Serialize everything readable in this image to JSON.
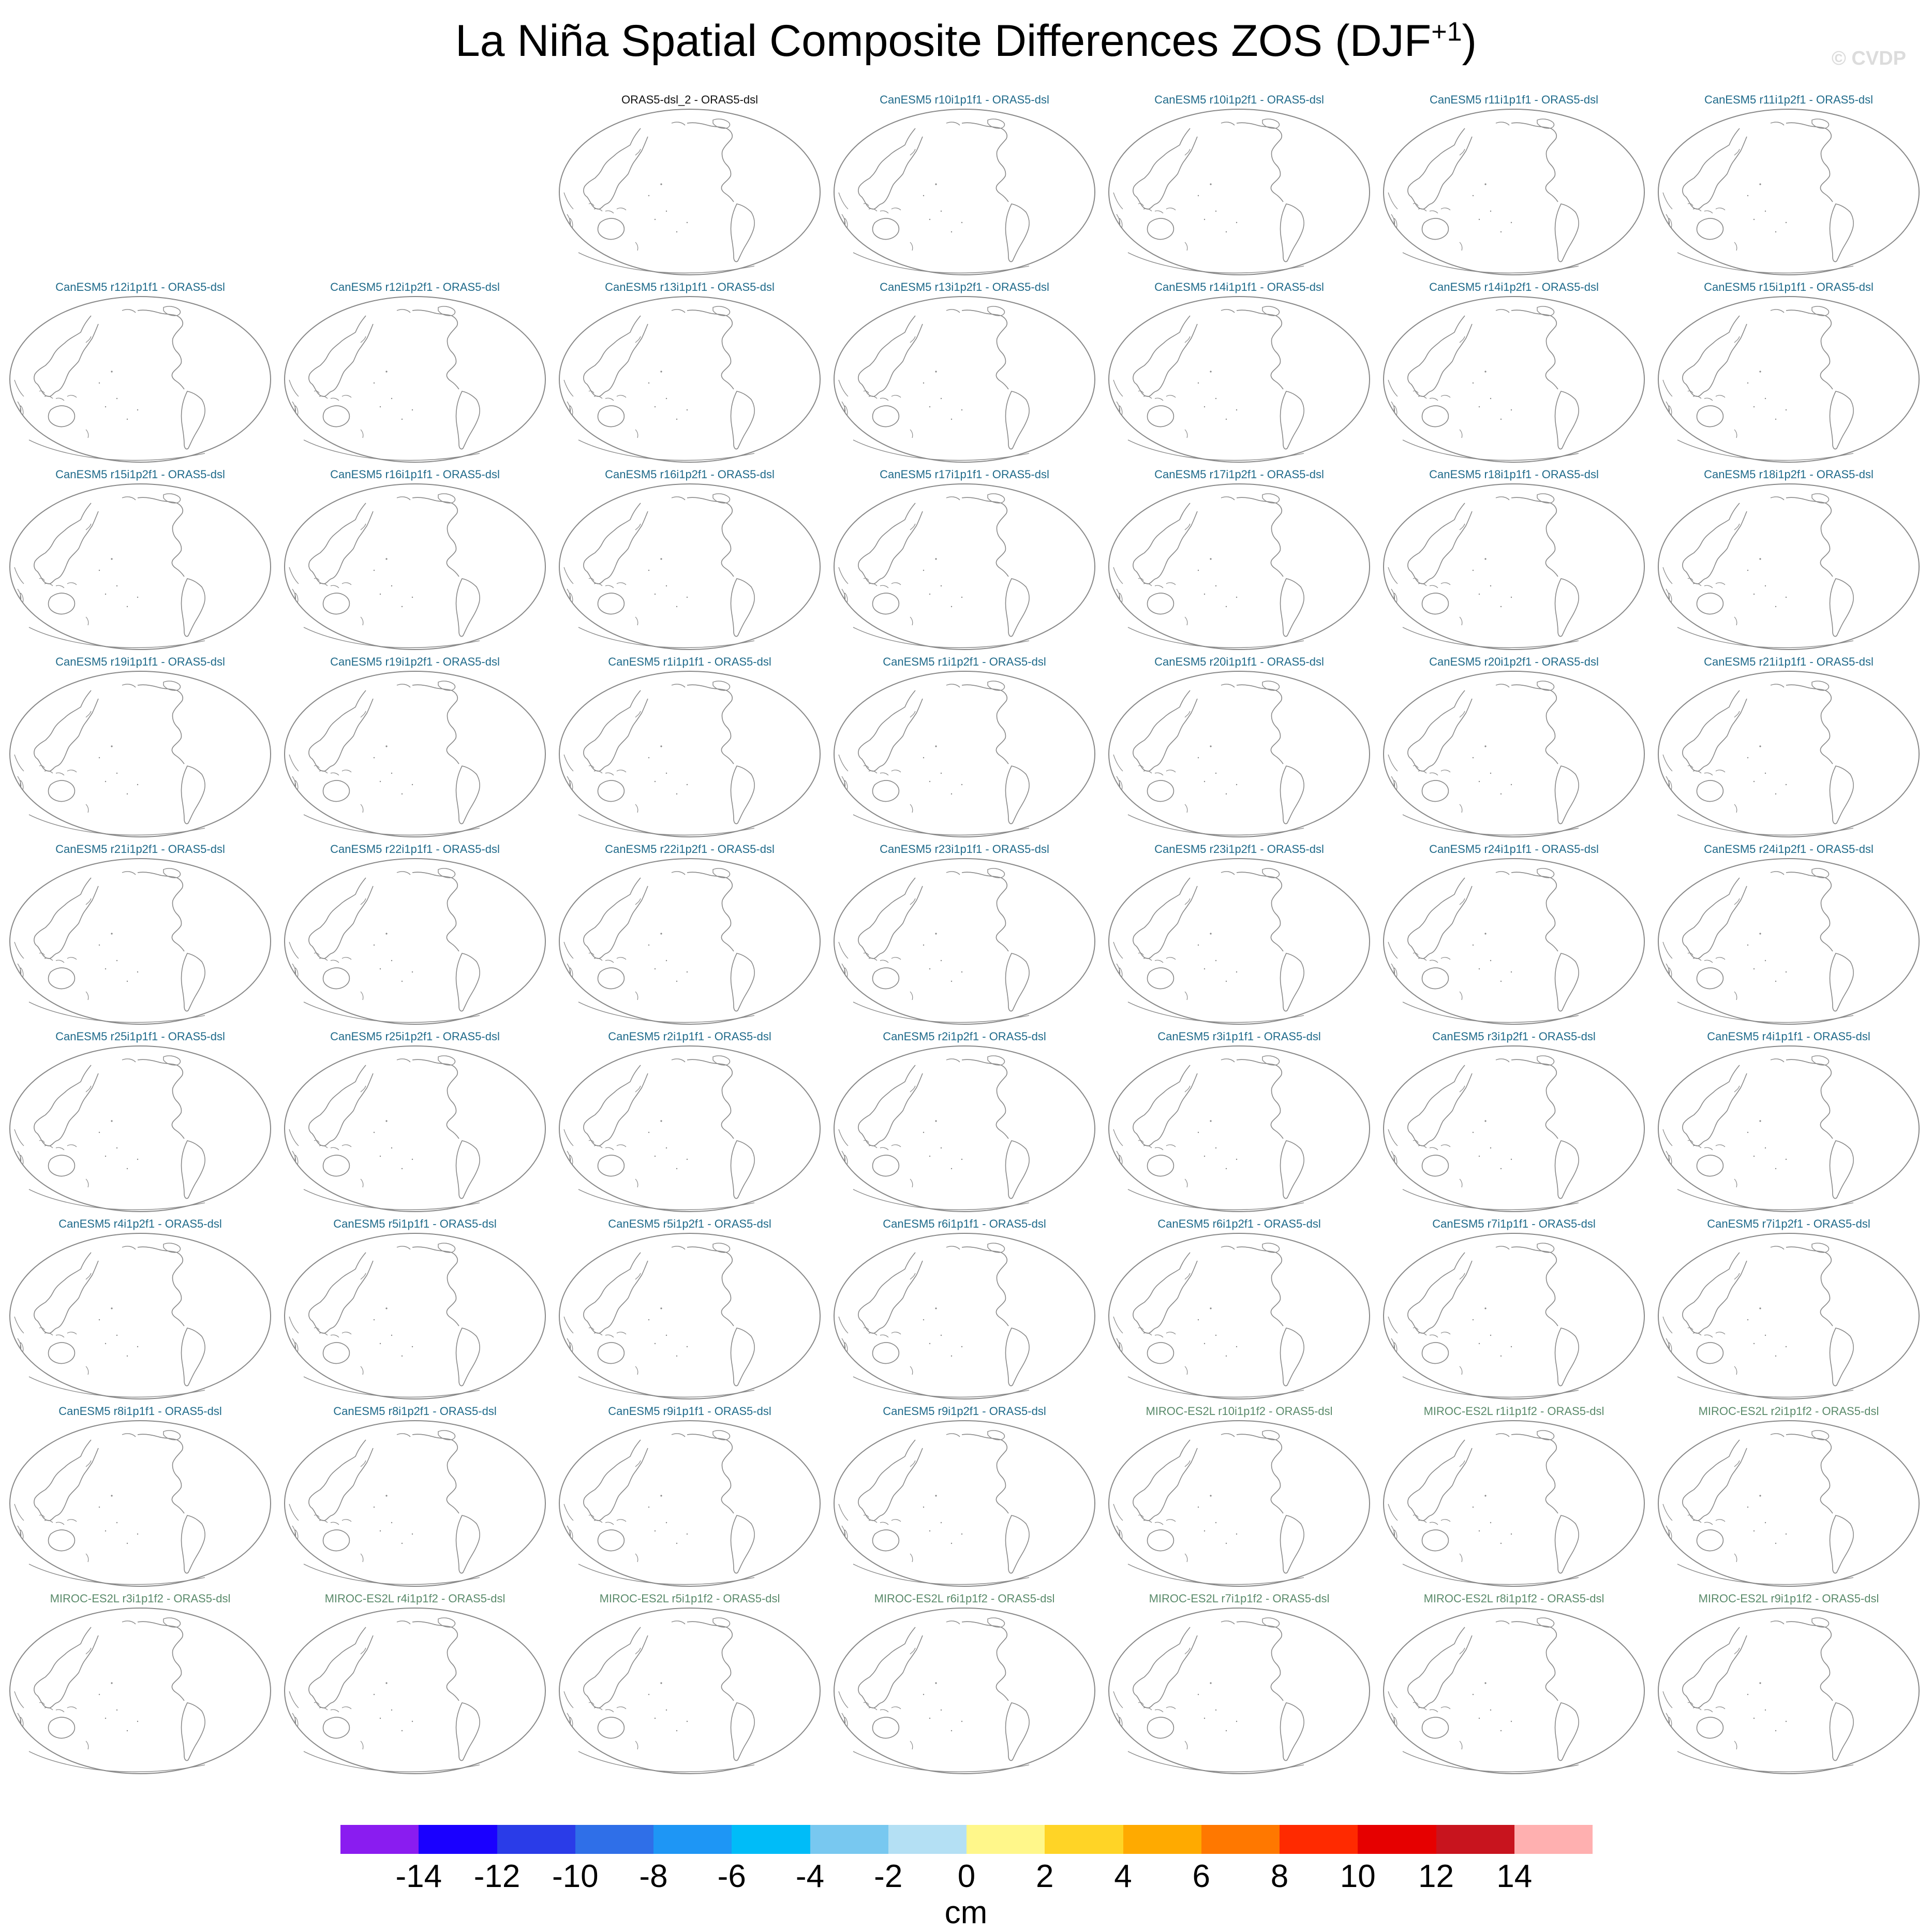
{
  "figure": {
    "title_main": "La Niña Spatial Composite Differences ZOS (DJF",
    "title_sup": "+1",
    "title_close": ")",
    "watermark": "© CVDP"
  },
  "panels": [
    {
      "label": "ORAS5-dsl_2 - ORAS5-dsl",
      "group": "obs"
    },
    {
      "label": "CanESM5 r10i1p1f1 - ORAS5-dsl",
      "group": "canesm"
    },
    {
      "label": "CanESM5 r10i1p2f1 - ORAS5-dsl",
      "group": "canesm"
    },
    {
      "label": "CanESM5 r11i1p1f1 - ORAS5-dsl",
      "group": "canesm"
    },
    {
      "label": "CanESM5 r11i1p2f1 - ORAS5-dsl",
      "group": "canesm"
    },
    {
      "label": "CanESM5 r12i1p1f1 - ORAS5-dsl",
      "group": "canesm"
    },
    {
      "label": "CanESM5 r12i1p2f1 - ORAS5-dsl",
      "group": "canesm"
    },
    {
      "label": "CanESM5 r13i1p1f1 - ORAS5-dsl",
      "group": "canesm"
    },
    {
      "label": "CanESM5 r13i1p2f1 - ORAS5-dsl",
      "group": "canesm"
    },
    {
      "label": "CanESM5 r14i1p1f1 - ORAS5-dsl",
      "group": "canesm"
    },
    {
      "label": "CanESM5 r14i1p2f1 - ORAS5-dsl",
      "group": "canesm"
    },
    {
      "label": "CanESM5 r15i1p1f1 - ORAS5-dsl",
      "group": "canesm"
    },
    {
      "label": "CanESM5 r15i1p2f1 - ORAS5-dsl",
      "group": "canesm"
    },
    {
      "label": "CanESM5 r16i1p1f1 - ORAS5-dsl",
      "group": "canesm"
    },
    {
      "label": "CanESM5 r16i1p2f1 - ORAS5-dsl",
      "group": "canesm"
    },
    {
      "label": "CanESM5 r17i1p1f1 - ORAS5-dsl",
      "group": "canesm"
    },
    {
      "label": "CanESM5 r17i1p2f1 - ORAS5-dsl",
      "group": "canesm"
    },
    {
      "label": "CanESM5 r18i1p1f1 - ORAS5-dsl",
      "group": "canesm"
    },
    {
      "label": "CanESM5 r18i1p2f1 - ORAS5-dsl",
      "group": "canesm"
    },
    {
      "label": "CanESM5 r19i1p1f1 - ORAS5-dsl",
      "group": "canesm"
    },
    {
      "label": "CanESM5 r19i1p2f1 - ORAS5-dsl",
      "group": "canesm"
    },
    {
      "label": "CanESM5 r1i1p1f1 - ORAS5-dsl",
      "group": "canesm"
    },
    {
      "label": "CanESM5 r1i1p2f1 - ORAS5-dsl",
      "group": "canesm"
    },
    {
      "label": "CanESM5 r20i1p1f1 - ORAS5-dsl",
      "group": "canesm"
    },
    {
      "label": "CanESM5 r20i1p2f1 - ORAS5-dsl",
      "group": "canesm"
    },
    {
      "label": "CanESM5 r21i1p1f1 - ORAS5-dsl",
      "group": "canesm"
    },
    {
      "label": "CanESM5 r21i1p2f1 - ORAS5-dsl",
      "group": "canesm"
    },
    {
      "label": "CanESM5 r22i1p1f1 - ORAS5-dsl",
      "group": "canesm"
    },
    {
      "label": "CanESM5 r22i1p2f1 - ORAS5-dsl",
      "group": "canesm"
    },
    {
      "label": "CanESM5 r23i1p1f1 - ORAS5-dsl",
      "group": "canesm"
    },
    {
      "label": "CanESM5 r23i1p2f1 - ORAS5-dsl",
      "group": "canesm"
    },
    {
      "label": "CanESM5 r24i1p1f1 - ORAS5-dsl",
      "group": "canesm"
    },
    {
      "label": "CanESM5 r24i1p2f1 - ORAS5-dsl",
      "group": "canesm"
    },
    {
      "label": "CanESM5 r25i1p1f1 - ORAS5-dsl",
      "group": "canesm"
    },
    {
      "label": "CanESM5 r25i1p2f1 - ORAS5-dsl",
      "group": "canesm"
    },
    {
      "label": "CanESM5 r2i1p1f1 - ORAS5-dsl",
      "group": "canesm"
    },
    {
      "label": "CanESM5 r2i1p2f1 - ORAS5-dsl",
      "group": "canesm"
    },
    {
      "label": "CanESM5 r3i1p1f1 - ORAS5-dsl",
      "group": "canesm"
    },
    {
      "label": "CanESM5 r3i1p2f1 - ORAS5-dsl",
      "group": "canesm"
    },
    {
      "label": "CanESM5 r4i1p1f1 - ORAS5-dsl",
      "group": "canesm"
    },
    {
      "label": "CanESM5 r4i1p2f1 - ORAS5-dsl",
      "group": "canesm"
    },
    {
      "label": "CanESM5 r5i1p1f1 - ORAS5-dsl",
      "group": "canesm"
    },
    {
      "label": "CanESM5 r5i1p2f1 - ORAS5-dsl",
      "group": "canesm"
    },
    {
      "label": "CanESM5 r6i1p1f1 - ORAS5-dsl",
      "group": "canesm"
    },
    {
      "label": "CanESM5 r6i1p2f1 - ORAS5-dsl",
      "group": "canesm"
    },
    {
      "label": "CanESM5 r7i1p1f1 - ORAS5-dsl",
      "group": "canesm"
    },
    {
      "label": "CanESM5 r7i1p2f1 - ORAS5-dsl",
      "group": "canesm"
    },
    {
      "label": "CanESM5 r8i1p1f1 - ORAS5-dsl",
      "group": "canesm"
    },
    {
      "label": "CanESM5 r8i1p2f1 - ORAS5-dsl",
      "group": "canesm"
    },
    {
      "label": "CanESM5 r9i1p1f1 - ORAS5-dsl",
      "group": "canesm"
    },
    {
      "label": "CanESM5 r9i1p2f1 - ORAS5-dsl",
      "group": "canesm"
    },
    {
      "label": "MIROC-ES2L r10i1p1f2 - ORAS5-dsl",
      "group": "miroc"
    },
    {
      "label": "MIROC-ES2L r1i1p1f2 - ORAS5-dsl",
      "group": "miroc"
    },
    {
      "label": "MIROC-ES2L r2i1p1f2 - ORAS5-dsl",
      "group": "miroc"
    },
    {
      "label": "MIROC-ES2L r3i1p1f2 - ORAS5-dsl",
      "group": "miroc"
    },
    {
      "label": "MIROC-ES2L r4i1p1f2 - ORAS5-dsl",
      "group": "miroc"
    },
    {
      "label": "MIROC-ES2L r5i1p1f2 - ORAS5-dsl",
      "group": "miroc"
    },
    {
      "label": "MIROC-ES2L r6i1p1f2 - ORAS5-dsl",
      "group": "miroc"
    },
    {
      "label": "MIROC-ES2L r7i1p1f2 - ORAS5-dsl",
      "group": "miroc"
    },
    {
      "label": "MIROC-ES2L r8i1p1f2 - ORAS5-dsl",
      "group": "miroc"
    },
    {
      "label": "MIROC-ES2L r9i1p1f2 - ORAS5-dsl",
      "group": "miroc"
    }
  ],
  "colorbar": {
    "colors": [
      "#8a1cf0",
      "#1a00ff",
      "#2a3ce8",
      "#2f6fe8",
      "#1e96f5",
      "#00bcf8",
      "#78c8f0",
      "#b4e0f4",
      "#fff78a",
      "#ffd426",
      "#ffaa00",
      "#ff7800",
      "#ff2a00",
      "#e60000",
      "#c8141e",
      "#ffb0b0"
    ],
    "tick_labels": [
      "-14",
      "-12",
      "-10",
      "-8",
      "-6",
      "-4",
      "-2",
      "0",
      "2",
      "4",
      "6",
      "8",
      "10",
      "12",
      "14"
    ],
    "units": "cm"
  }
}
